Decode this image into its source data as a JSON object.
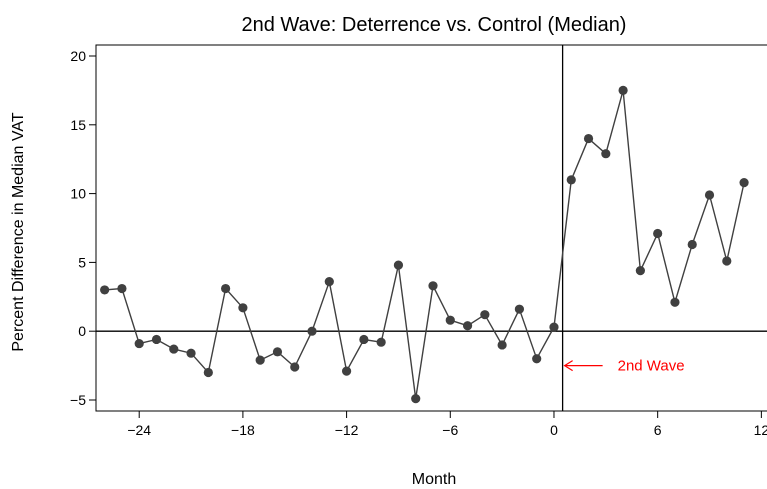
{
  "chart_data": {
    "type": "line",
    "title": "2nd Wave: Deterrence vs. Control (Median)",
    "xlabel": "Month",
    "ylabel": "Percent Difference in Median VAT",
    "xlim": [
      -26.5,
      12.5
    ],
    "ylim": [
      -5.8,
      20.8
    ],
    "x_ticks": [
      -24,
      -18,
      -12,
      -6,
      0,
      6,
      12
    ],
    "x_tick_labels": [
      "−24",
      "−18",
      "−12",
      "−6",
      "0",
      "6",
      "12"
    ],
    "y_ticks": [
      -5,
      0,
      5,
      10,
      15,
      20
    ],
    "y_tick_labels": [
      "−5",
      "0",
      "5",
      "10",
      "15",
      "20"
    ],
    "grid": false,
    "reference_lines": {
      "horizontal_y": 0,
      "vertical_x": 0.5
    },
    "annotation": {
      "text": "2nd Wave",
      "color": "#ff0000",
      "arrow_to_x": 0.5,
      "y": -2.5,
      "text_x": 2.2
    },
    "series_color": "#404040",
    "series": [
      {
        "x": [
          -26,
          -25,
          -24,
          -23,
          -22,
          -21,
          -20,
          -19,
          -18,
          -17,
          -16,
          -15,
          -14,
          -13,
          -12,
          -11,
          -10,
          -9,
          -8,
          -7,
          -6,
          -5,
          -4,
          -3,
          -2,
          -1,
          0,
          1,
          2,
          3,
          4,
          5,
          6,
          7,
          8,
          9,
          10,
          11
        ],
        "y": [
          3.0,
          3.1,
          -0.9,
          -0.6,
          -1.3,
          -1.6,
          -3.0,
          3.1,
          1.7,
          -2.1,
          -1.5,
          -2.6,
          0.0,
          3.6,
          -2.9,
          -0.6,
          -0.8,
          4.8,
          -4.9,
          3.3,
          0.8,
          0.4,
          1.2,
          -1.0,
          1.6,
          -2.0,
          0.3,
          11.0,
          14.0,
          12.9,
          17.5,
          4.4,
          7.1,
          2.1,
          6.3,
          9.9,
          5.1,
          10.8
        ]
      }
    ]
  }
}
